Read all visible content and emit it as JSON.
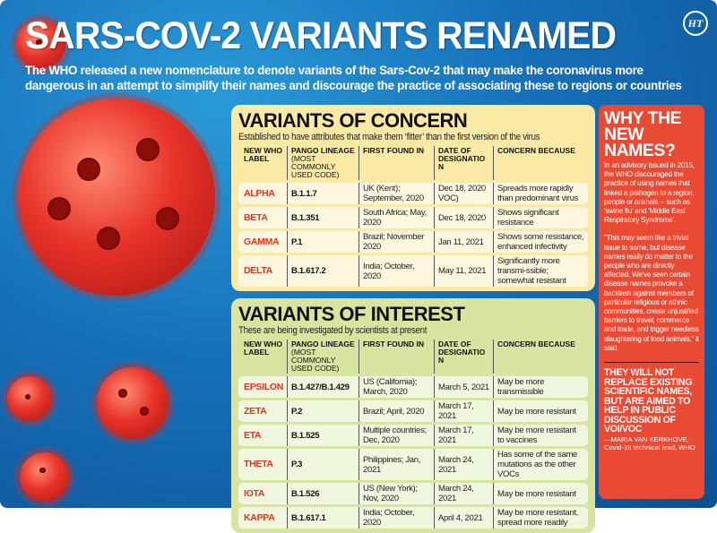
{
  "header": {
    "title": "SARS-COV-2 VARIANTS RENAMED",
    "subtitle": "The WHO released a new nomenclature to denote variants of the Sars-Cov-2 that may make the coronavirus more dangerous in an attempt to simplify their names and discourage the practice of associating these to regions or countries",
    "logo": "HT"
  },
  "columns": {
    "label": "NEW WHO LABEL",
    "lineage": "PANGO LINEAGE",
    "lineage_note": "(MOST COMMONLY USED CODE)",
    "found": "FIRST FOUND IN",
    "date": "DATE OF DESIGNATION",
    "concern": "CONCERN BECAUSE"
  },
  "concern": {
    "title": "VARIANTS OF CONCERN",
    "description": "Established to have attributes that make them ‘fitter’ than the first version of the virus",
    "rows": [
      {
        "label": "ALPHA",
        "lineage": "B.1.1.7",
        "found": "UK (Kent); September, 2020",
        "date": "Dec 18, 2020 VOC)",
        "concern": "Spreads more rapidly than predominant virus"
      },
      {
        "label": "BETA",
        "lineage": "B.1.351",
        "found": "South Africa; May, 2020",
        "date": "Dec 18, 2020",
        "concern": "Shows significant resistance"
      },
      {
        "label": "GAMMA",
        "lineage": "P.1",
        "found": "Brazil; November 2020",
        "date": "Jan 11, 2021",
        "concern": "Shows some resistance, enhanced infectivity"
      },
      {
        "label": "DELTA",
        "lineage": "B.1.617.2",
        "found": "India; October, 2020",
        "date": "May 11, 2021",
        "concern": "Significantly more transmi-ssible; somewhat resistant"
      }
    ]
  },
  "interest": {
    "title": "VARIANTS OF INTEREST",
    "description": "These are being investigated by scientists at present",
    "rows": [
      {
        "label": "EPSILON",
        "lineage": "B.1.427/B.1.429",
        "found": "US (California); March, 2020",
        "date": "March 5, 2021",
        "concern": "May be more transmissible"
      },
      {
        "label": "ZETA",
        "lineage": "P.2",
        "found": "Brazil; April, 2020",
        "date": "March 17, 2021",
        "concern": "May be more resistant"
      },
      {
        "label": "ETA",
        "lineage": "B.1.525",
        "found": "Multiple countries; Dec, 2020",
        "date": "March 17, 2021",
        "concern": "May be more resistant to vaccines"
      },
      {
        "label": "THETA",
        "lineage": "P.3",
        "found": "Philippines; Jan, 2021",
        "date": "March 24, 2021",
        "concern": "Has some of the same mutations as the other VOCs"
      },
      {
        "label": "IOTA",
        "lineage": "B.1.526",
        "found": "US (New York); Nov, 2020",
        "date": "March 24, 2021",
        "concern": "May be more resistant"
      },
      {
        "label": "KAPPA",
        "lineage": "B.1.617.1",
        "found": "India; October, 2020",
        "date": "April 4, 2021",
        "concern": "May be more resistant, spread more readily"
      }
    ]
  },
  "why": {
    "title": "WHY THE NEW NAMES?",
    "para1": "In an advisory issued in 2015, the WHO discouraged the practice of using names that linked a pathogen to a region, people or animals -- such as 'swine flu' and 'Middle East Respiratory Syndrome'.",
    "para2": "\"This may seem like a trivial issue to some, but disease names really do matter to the people who are directly affected. We've seen certain disease names provoke a backlash against members of particular religious or ethnic communities, create unjustified barriers to travel, commerce and trade, and trigger needless slaughtering of food animals,\" it said.",
    "quote": "THEY WILL NOT REPLACE EXISTING SCIENTIFIC NAMES, BUT ARE AIMED TO HELP IN PUBLIC DISCUSSION OF VOI/VOC",
    "attribution": "—MARIA VAN KERKHOVE, Covid-19 technical lead, WHO"
  },
  "colors": {
    "background": "#1670b8",
    "concern_panel": "#fbe9a6",
    "interest_panel": "#d8e4a0",
    "why_panel": "#e84a34",
    "label_red": "#d63a22"
  }
}
